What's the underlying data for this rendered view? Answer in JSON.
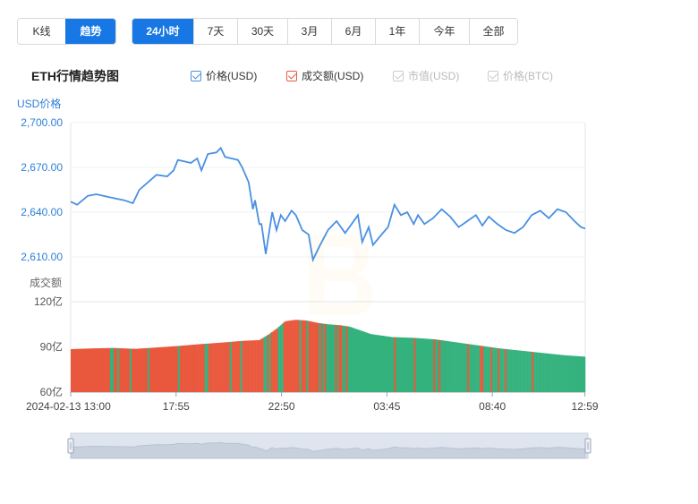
{
  "tabs_left": [
    {
      "label": "K线",
      "active": false
    },
    {
      "label": "趋势",
      "active": true
    }
  ],
  "tabs_range": [
    {
      "label": "24小时",
      "active": true
    },
    {
      "label": "7天",
      "active": false
    },
    {
      "label": "30天",
      "active": false
    },
    {
      "label": "3月",
      "active": false
    },
    {
      "label": "6月",
      "active": false
    },
    {
      "label": "1年",
      "active": false
    },
    {
      "label": "今年",
      "active": false
    },
    {
      "label": "全部",
      "active": false
    }
  ],
  "legend": [
    {
      "label": "价格(USD)",
      "enabled": true,
      "color": "#4a90e2"
    },
    {
      "label": "成交额(USD)",
      "enabled": true,
      "color": "#e9583c"
    },
    {
      "label": "市值(USD)",
      "enabled": false,
      "color": "#cccccc"
    },
    {
      "label": "价格(BTC)",
      "enabled": false,
      "color": "#cccccc"
    }
  ],
  "colors": {
    "price_line": "#4a90e2",
    "volume_up": "#e9583c",
    "volume_down": "#34b27d",
    "accent": "#1677e5"
  },
  "chart_data": {
    "type": "line",
    "title": "ETH行情趋势图",
    "price_axis_label": "USD价格",
    "volume_axis_label": "成交额",
    "price_ylim": [
      2600,
      2700
    ],
    "price_ticks": [
      "2,700.00",
      "2,670.00",
      "2,640.00",
      "2,610.00"
    ],
    "price_tick_values": [
      2700,
      2670,
      2640,
      2610
    ],
    "volume_ylim": [
      60,
      120
    ],
    "volume_ticks": [
      "120亿",
      "90亿",
      "60亿"
    ],
    "volume_tick_values": [
      120,
      90,
      60
    ],
    "x_labels": [
      "2024-02-13 13:00",
      "17:55",
      "22:50",
      "03:45",
      "08:40",
      "12:59"
    ],
    "x_label_positions_hours": [
      0,
      4.917,
      9.833,
      14.75,
      19.667,
      23.983
    ],
    "x_range_hours": [
      0,
      24
    ],
    "price_series": {
      "name": "价格(USD)",
      "x_hours": [
        0,
        0.3,
        0.8,
        1.2,
        1.8,
        2.5,
        2.9,
        3.2,
        3.6,
        4.0,
        4.5,
        4.8,
        5.0,
        5.3,
        5.6,
        5.9,
        6.1,
        6.4,
        6.8,
        7.0,
        7.2,
        7.5,
        7.8,
        8.0,
        8.3,
        8.5,
        8.6,
        8.8,
        8.9,
        9.1,
        9.4,
        9.6,
        9.8,
        10.0,
        10.3,
        10.5,
        10.8,
        11.1,
        11.3,
        11.6,
        12.0,
        12.4,
        12.8,
        13.1,
        13.4,
        13.6,
        13.9,
        14.1,
        14.5,
        14.8,
        15.1,
        15.4,
        15.7,
        16.0,
        16.2,
        16.5,
        16.9,
        17.3,
        17.7,
        18.1,
        18.5,
        18.9,
        19.2,
        19.5,
        19.9,
        20.3,
        20.7,
        21.1,
        21.5,
        21.9,
        22.3,
        22.7,
        23.1,
        23.5,
        23.8,
        24.0
      ],
      "values": [
        2647,
        2645,
        2651,
        2652,
        2650,
        2648,
        2646,
        2655,
        2660,
        2665,
        2664,
        2668,
        2675,
        2674,
        2673,
        2676,
        2668,
        2679,
        2680,
        2683,
        2677,
        2676,
        2675,
        2670,
        2660,
        2642,
        2648,
        2632,
        2632,
        2612,
        2640,
        2628,
        2638,
        2634,
        2641,
        2638,
        2628,
        2625,
        2608,
        2617,
        2628,
        2634,
        2626,
        2632,
        2638,
        2620,
        2630,
        2618,
        2625,
        2630,
        2645,
        2638,
        2640,
        2632,
        2638,
        2632,
        2636,
        2642,
        2637,
        2630,
        2634,
        2638,
        2631,
        2637,
        2632,
        2628,
        2626,
        2630,
        2638,
        2641,
        2636,
        2642,
        2640,
        2634,
        2630,
        2629
      ]
    },
    "volume_series": {
      "name": "成交额(USD)",
      "x_hours": [
        0,
        1,
        2,
        3,
        4,
        5,
        6,
        7,
        8,
        8.8,
        9.2,
        9.6,
        10.0,
        10.5,
        11,
        11.5,
        12,
        12.5,
        13,
        14,
        15,
        16,
        17,
        18,
        19,
        20,
        21,
        22,
        23,
        24
      ],
      "values": [
        88.5,
        89.0,
        89.3,
        88.7,
        89.6,
        90.6,
        91.8,
        92.8,
        94.0,
        94.5,
        98,
        102,
        107,
        108,
        107.5,
        106,
        105,
        104.5,
        103.5,
        98.5,
        96.5,
        96.0,
        95.0,
        93.0,
        91.0,
        89.0,
        87.5,
        86.0,
        84.5,
        83.5
      ],
      "up_ratio_before_hour_9": 0.92,
      "up_ratio_after_hour_12": 0.12
    }
  }
}
